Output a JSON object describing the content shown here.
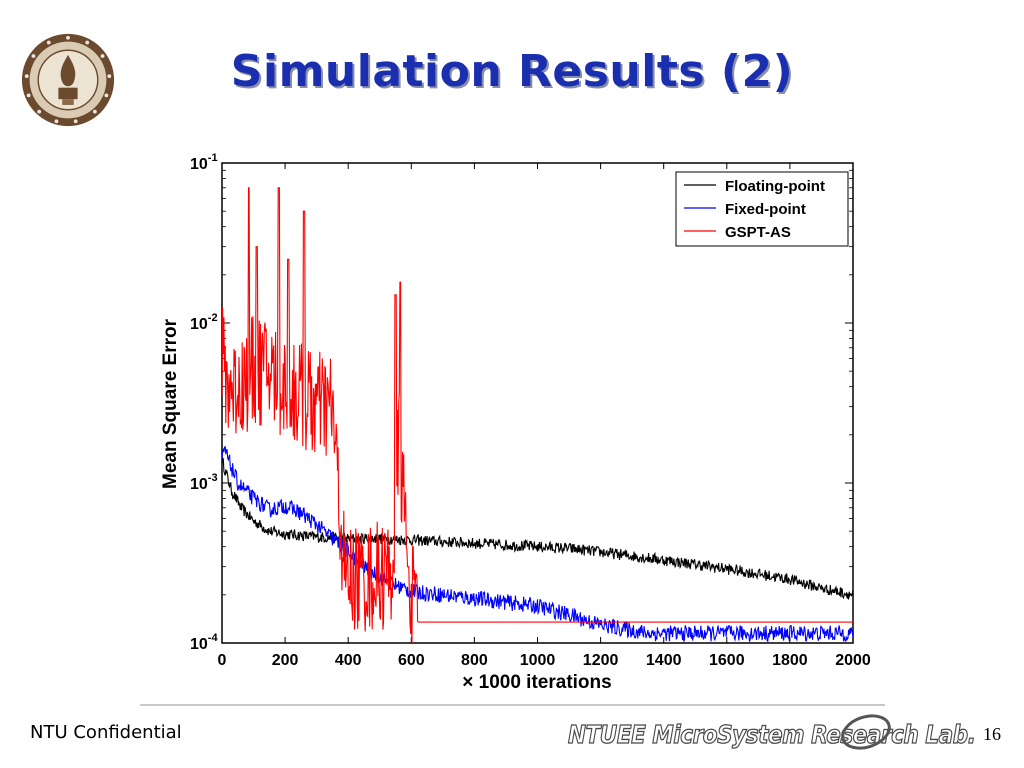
{
  "slide": {
    "title": "Simulation Results (2)",
    "footer_left": "NTU Confidential",
    "footer_lab": "NTUEE MicroSystem Research Lab.",
    "page_number": "16"
  },
  "chart_data": {
    "type": "line",
    "title": "",
    "xlabel": "× 1000 iterations",
    "ylabel": "Mean Square Error",
    "xlim": [
      0,
      2000
    ],
    "ylim": [
      0.0001,
      0.1
    ],
    "yscale": "log",
    "grid": false,
    "legend": "top-right",
    "x_ticks": [
      "0",
      "200",
      "400",
      "600",
      "800",
      "1000",
      "1200",
      "1400",
      "1600",
      "1800",
      "2000"
    ],
    "y_ticks": [
      {
        "base": "10",
        "exp": "-4",
        "value": 0.0001
      },
      {
        "base": "10",
        "exp": "-3",
        "value": 0.001
      },
      {
        "base": "10",
        "exp": "-2",
        "value": 0.01
      },
      {
        "base": "10",
        "exp": "-1",
        "value": 0.1
      }
    ],
    "series": [
      {
        "name": "Floating-point",
        "color": "#000000",
        "noise": 0.035,
        "points": [
          [
            0,
            0.0014
          ],
          [
            10,
            0.0012
          ],
          [
            30,
            0.0009
          ],
          [
            60,
            0.0007
          ],
          [
            100,
            0.00058
          ],
          [
            150,
            0.0005
          ],
          [
            200,
            0.00048
          ],
          [
            300,
            0.00046
          ],
          [
            400,
            0.00045
          ],
          [
            500,
            0.00045
          ],
          [
            600,
            0.00044
          ],
          [
            700,
            0.00043
          ],
          [
            800,
            0.00042
          ],
          [
            900,
            0.00041
          ],
          [
            1000,
            0.0004
          ],
          [
            1100,
            0.00039
          ],
          [
            1200,
            0.00037
          ],
          [
            1300,
            0.00035
          ],
          [
            1400,
            0.00033
          ],
          [
            1500,
            0.00031
          ],
          [
            1600,
            0.00029
          ],
          [
            1700,
            0.00027
          ],
          [
            1800,
            0.00025
          ],
          [
            1900,
            0.00022
          ],
          [
            2000,
            0.0002
          ]
        ]
      },
      {
        "name": "Fixed-point",
        "color": "#0000ff",
        "noise": 0.05,
        "points": [
          [
            0,
            0.0014
          ],
          [
            10,
            0.0016
          ],
          [
            20,
            0.0014
          ],
          [
            50,
            0.001
          ],
          [
            100,
            0.0008
          ],
          [
            150,
            0.00068
          ],
          [
            200,
            0.00072
          ],
          [
            250,
            0.00065
          ],
          [
            300,
            0.00055
          ],
          [
            350,
            0.00045
          ],
          [
            400,
            0.00037
          ],
          [
            450,
            0.0003
          ],
          [
            500,
            0.00026
          ],
          [
            550,
            0.00023
          ],
          [
            600,
            0.00021
          ],
          [
            700,
            0.0002
          ],
          [
            800,
            0.00019
          ],
          [
            900,
            0.00018
          ],
          [
            1000,
            0.00017
          ],
          [
            1100,
            0.00015
          ],
          [
            1200,
            0.00013
          ],
          [
            1300,
            0.00012
          ],
          [
            1350,
            0.000115
          ],
          [
            1400,
            0.000115
          ],
          [
            2000,
            0.000115
          ]
        ]
      },
      {
        "name": "GSPT-AS",
        "color": "#ff0000",
        "noise": 0.35,
        "points": [
          [
            0,
            0.006
          ],
          [
            20,
            0.004
          ],
          [
            50,
            0.004
          ],
          [
            100,
            0.005
          ],
          [
            150,
            0.005
          ],
          [
            200,
            0.004
          ],
          [
            250,
            0.0035
          ],
          [
            300,
            0.003
          ],
          [
            350,
            0.003
          ],
          [
            370,
            0.0008
          ],
          [
            390,
            0.00025
          ],
          [
            500,
            0.00026
          ],
          [
            540,
            0.00028
          ],
          [
            560,
            0.002
          ],
          [
            580,
            0.0006
          ],
          [
            600,
            0.0002
          ],
          [
            610,
            0.00014
          ],
          [
            620,
            0.000135
          ],
          [
            2000,
            0.000135
          ]
        ],
        "spikes": [
          [
            85,
            0.07
          ],
          [
            110,
            0.03
          ],
          [
            180,
            0.07
          ],
          [
            210,
            0.025
          ],
          [
            260,
            0.05
          ],
          [
            550,
            0.015
          ],
          [
            565,
            0.018
          ],
          [
            590,
            0.0003
          ],
          [
            605,
            0.0004
          ]
        ],
        "noise_until": 620
      }
    ]
  }
}
